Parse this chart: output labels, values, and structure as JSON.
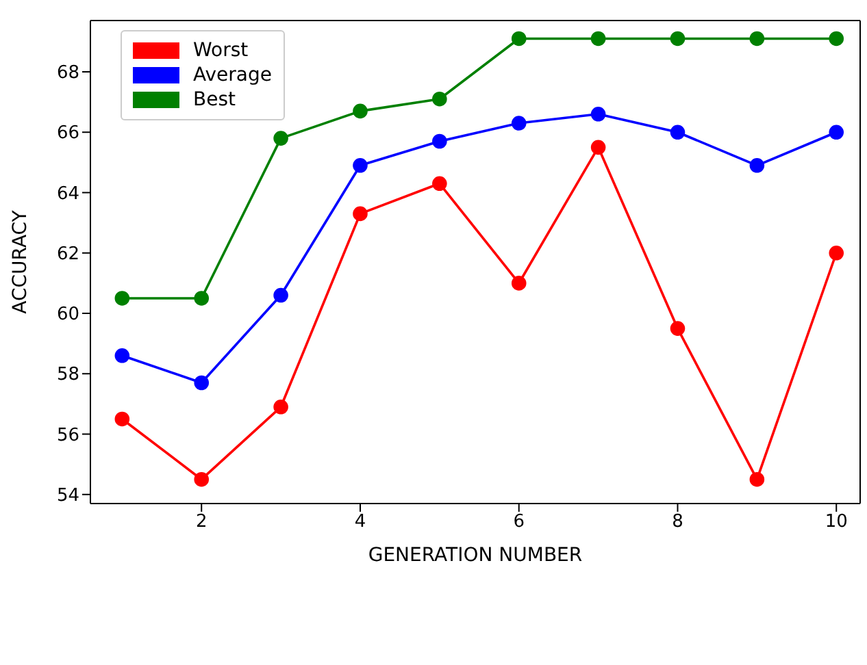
{
  "chart_data": {
    "type": "line",
    "xlabel": "GENERATION NUMBER",
    "ylabel": "ACCURACY",
    "x": [
      1,
      2,
      3,
      4,
      5,
      6,
      7,
      8,
      9,
      10
    ],
    "series": [
      {
        "name": "Worst",
        "color": "#ff0000",
        "values": [
          56.5,
          54.5,
          56.9,
          63.3,
          64.3,
          61.0,
          65.5,
          59.5,
          54.5,
          62.0
        ]
      },
      {
        "name": "Average",
        "color": "#0000ff",
        "values": [
          58.6,
          57.7,
          60.6,
          64.9,
          65.7,
          66.3,
          66.6,
          66.0,
          64.9,
          66.0
        ]
      },
      {
        "name": "Best",
        "color": "#008000",
        "values": [
          60.5,
          60.5,
          65.8,
          66.7,
          67.1,
          69.1,
          69.1,
          69.1,
          69.1,
          69.1
        ]
      }
    ],
    "xlim": [
      0.6,
      10.3
    ],
    "xticks": [
      2,
      4,
      6,
      8,
      10
    ],
    "ylim": [
      53.7,
      69.7
    ],
    "yticks": [
      54,
      56,
      58,
      60,
      62,
      64,
      66,
      68
    ],
    "legend": "top left",
    "marker": "circle",
    "line_style": "solid",
    "grid": false
  }
}
